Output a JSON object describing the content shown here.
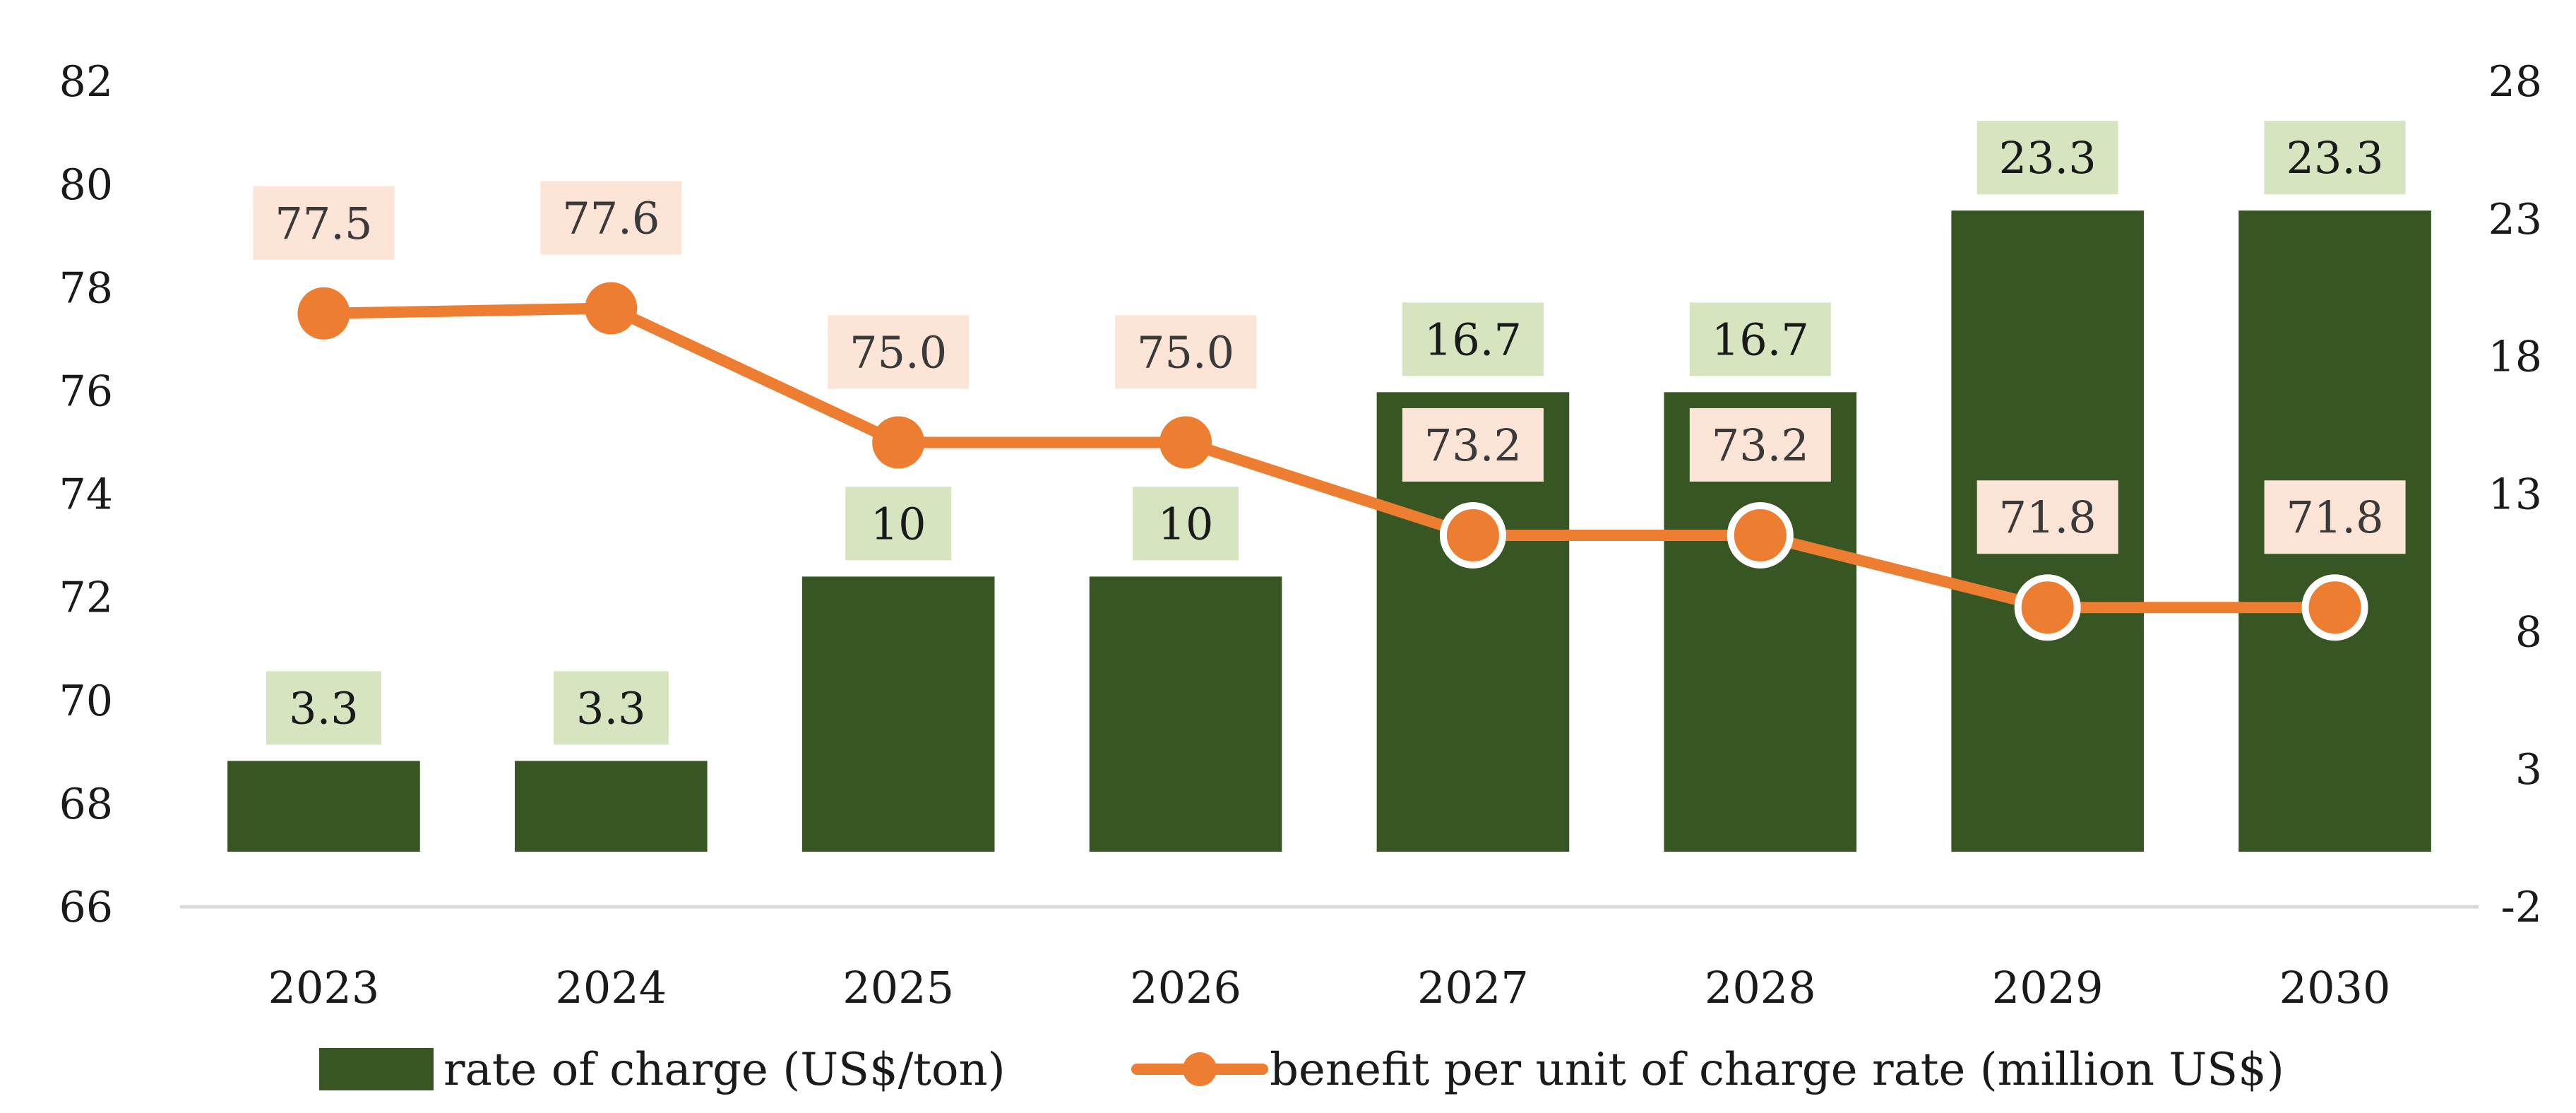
{
  "chart_data": {
    "type": "bar+line",
    "categories": [
      "2023",
      "2024",
      "2025",
      "2026",
      "2027",
      "2028",
      "2029",
      "2030"
    ],
    "series": [
      {
        "name": "rate of charge (US$/ton)",
        "type": "bar",
        "axis": "right",
        "values": [
          3.3,
          3.3,
          10,
          10,
          16.7,
          16.7,
          23.3,
          23.3
        ],
        "labels": [
          "3.3",
          "3.3",
          "10",
          "10",
          "16.7",
          "16.7",
          "23.3",
          "23.3"
        ],
        "color": "#375623",
        "label_bg": "#d6e4bf"
      },
      {
        "name": "benefit per unit of charge rate (million US$)",
        "type": "line",
        "axis": "left",
        "values": [
          77.5,
          77.6,
          75.0,
          75.0,
          73.2,
          73.2,
          71.8,
          71.8
        ],
        "labels": [
          "77.5",
          "77.6",
          "75.0",
          "75.0",
          "73.2",
          "73.2",
          "71.8",
          "71.8"
        ],
        "color": "#ed7d31",
        "label_bg": "#fce4d6"
      }
    ],
    "y_left": {
      "min": 66,
      "max": 82,
      "ticks": [
        "66",
        "68",
        "70",
        "72",
        "74",
        "76",
        "78",
        "80",
        "82"
      ]
    },
    "y_right": {
      "min": -2,
      "max": 28,
      "ticks": [
        "-2",
        "3",
        "8",
        "13",
        "18",
        "23",
        "28"
      ]
    },
    "legend": {
      "position": "bottom"
    },
    "grid": false
  }
}
